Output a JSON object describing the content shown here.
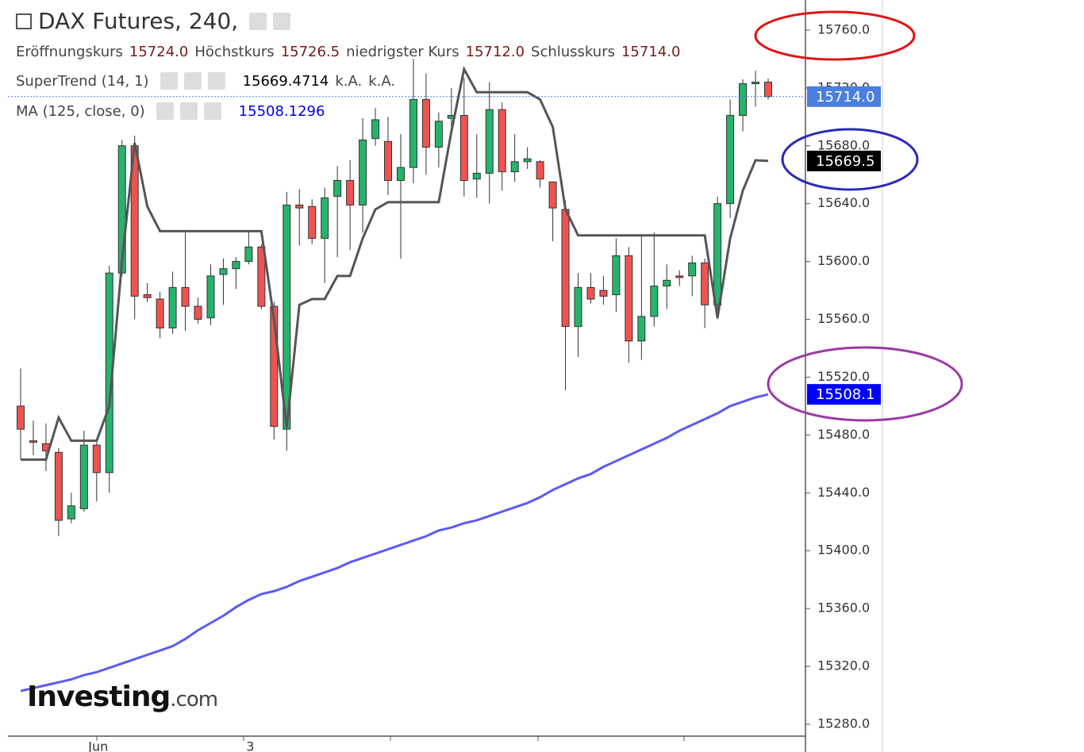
{
  "header": {
    "title": "DAX Futures, 240,",
    "ohlc": [
      {
        "label": "Eröffnungskurs",
        "value": "15724.0"
      },
      {
        "label": "Höchstkurs",
        "value": "15726.5"
      },
      {
        "label": "niedrigster Kurs",
        "value": "15712.0"
      },
      {
        "label": "Schlusskurs",
        "value": "15714.0"
      }
    ],
    "indicators": [
      {
        "name": "SuperTrend (14, 1)",
        "values": [
          "15669.4714",
          "k.A.",
          "k.A."
        ]
      },
      {
        "name": "MA (125, close, 0)",
        "values": [
          "15508.1296"
        ]
      }
    ]
  },
  "watermark": {
    "brand": "Investing",
    "suffix": ".com"
  },
  "chart_data": {
    "type": "candlestick",
    "categories": [
      null,
      null,
      null,
      null,
      null,
      null,
      "Jun",
      null,
      null,
      null,
      null,
      null,
      null,
      null,
      null,
      null,
      null,
      null,
      "3",
      null,
      null,
      null,
      null,
      null,
      null,
      null,
      null,
      null,
      null,
      null,
      null,
      null,
      null,
      null,
      null,
      null,
      null,
      null,
      null,
      null,
      null,
      null,
      null,
      null,
      null,
      null,
      null,
      null,
      null,
      null,
      null,
      null,
      null,
      null,
      null,
      null,
      null,
      null,
      null,
      null
    ],
    "open": [
      15500,
      15476,
      15474,
      15468,
      15422,
      15429,
      15473,
      15454,
      15592,
      15680,
      15577,
      15574,
      15554,
      15582,
      15569,
      15561,
      15591,
      15595,
      15600,
      15610,
      15569,
      15484,
      15639,
      15638,
      15616,
      15645,
      15656,
      15639,
      15685,
      15683,
      15656,
      15665,
      15712,
      15679,
      15699,
      15701,
      15657,
      15661,
      15705,
      15662,
      15669,
      15669,
      15655,
      15636,
      15555,
      15582,
      15580,
      15577,
      15604,
      15545,
      15562,
      15583,
      15590,
      15590,
      15599,
      15570,
      15640,
      15701,
      15723,
      15724
    ],
    "high": [
      15526,
      15490,
      15488,
      15471,
      15440,
      15483,
      15475,
      15597,
      15684,
      15687,
      15585,
      15579,
      15593,
      15620,
      15575,
      15598,
      15602,
      15603,
      15621,
      15612,
      15572,
      15648,
      15650,
      15643,
      15651,
      15666,
      15670,
      15699,
      15706,
      15700,
      15688,
      15740,
      15730,
      15703,
      15720,
      15727,
      15688,
      15724,
      15710,
      15688,
      15679,
      15670,
      15655,
      15642,
      15592,
      15592,
      15590,
      15616,
      15610,
      15618,
      15620,
      15598,
      15594,
      15604,
      15602,
      15645,
      15712,
      15726,
      15732,
      15726.5
    ],
    "low": [
      15463,
      15466,
      15455,
      15410,
      15419,
      15427,
      15434,
      15440,
      15590,
      15560,
      15572,
      15547,
      15550,
      15552,
      15557,
      15556,
      15570,
      15581,
      15598,
      15567,
      15477,
      15469,
      15611,
      15612,
      15585,
      15603,
      15608,
      15620,
      15680,
      15646,
      15602,
      15654,
      15660,
      15665,
      15690,
      15645,
      15644,
      15640,
      15649,
      15655,
      15664,
      15651,
      15614,
      15511,
      15534,
      15571,
      15570,
      15565,
      15530,
      15532,
      15555,
      15567,
      15583,
      15576,
      15554,
      15560,
      15630,
      15690,
      15707,
      15712
    ],
    "close": [
      15484,
      15475,
      15469,
      15421,
      15431,
      15473,
      15454,
      15592,
      15680,
      15576,
      15575,
      15554,
      15582,
      15569,
      15560,
      15590,
      15595,
      15600,
      15610,
      15569,
      15486,
      15639,
      15637,
      15616,
      15644,
      15656,
      15639,
      15684,
      15698,
      15656,
      15665,
      15712,
      15679,
      15697,
      15701,
      15656,
      15661,
      15705,
      15662,
      15669,
      15671,
      15657,
      15637,
      15555,
      15582,
      15574,
      15576,
      15604,
      15545,
      15562,
      15583,
      15587,
      15589,
      15599,
      15570,
      15640,
      15701,
      15723,
      15724,
      15714
    ],
    "up_color": "#26b36c",
    "down_color": "#ef5350",
    "series": [
      {
        "name": "SuperTrend",
        "color": "#555555",
        "values": [
          15463,
          15463,
          15463,
          15492,
          15476,
          15476,
          15476,
          15500,
          15600,
          15682,
          15638,
          15621,
          15621,
          15621,
          15621,
          15621,
          15621,
          15621,
          15621,
          15621,
          15560,
          15485,
          15570,
          15574,
          15574,
          15590,
          15590,
          15616,
          15636,
          15641,
          15641,
          15641,
          15641,
          15641,
          15690,
          15733,
          15717,
          15717,
          15717,
          15717,
          15717,
          15712,
          15693,
          15636,
          15618,
          15618,
          15618,
          15618,
          15618,
          15618,
          15618,
          15618,
          15618,
          15618,
          15618,
          15561,
          15616,
          15649,
          15670,
          15669.5
        ]
      },
      {
        "name": "MA",
        "color": "#5b5bf5",
        "values": [
          15303,
          15305,
          15307,
          15309,
          15311,
          15314,
          15316,
          15319,
          15322,
          15325,
          15328,
          15331,
          15334,
          15339,
          15345,
          15350,
          15355,
          15361,
          15366,
          15370,
          15372,
          15375,
          15379,
          15382,
          15385,
          15388,
          15392,
          15395,
          15398,
          15401,
          15404,
          15407,
          15410,
          15414,
          15416,
          15419,
          15421,
          15424,
          15427,
          15430,
          15433,
          15437,
          15442,
          15446,
          15450,
          15453,
          15458,
          15462,
          15466,
          15470,
          15474,
          15478,
          15483,
          15487,
          15491,
          15495,
          15500,
          15503,
          15506,
          15508.1
        ]
      }
    ],
    "price_markers": [
      {
        "value": 15714,
        "label": "15714.0",
        "color": "#4a7ee0"
      },
      {
        "value": 15669.5,
        "label": "15669.5",
        "color": "#000000"
      },
      {
        "value": 15508.1,
        "label": "15508.1",
        "color": "#0000ff"
      }
    ],
    "ylim": [
      15260.8,
      15780.8
    ],
    "yticks": [
      {
        "value": 15280,
        "label": "15280.0"
      },
      {
        "value": 15320,
        "label": "15320.0"
      },
      {
        "value": 15360,
        "label": "15360.0"
      },
      {
        "value": 15400,
        "label": "15400.0"
      },
      {
        "value": 15440,
        "label": "15440.0"
      },
      {
        "value": 15480,
        "label": "15480.0"
      },
      {
        "value": 15520,
        "label": "15520.0"
      },
      {
        "value": 15560,
        "label": "15560.0"
      },
      {
        "value": 15600,
        "label": "15600.0"
      },
      {
        "value": 15640,
        "label": "15640.0"
      },
      {
        "value": 15680,
        "label": "15680.0"
      },
      {
        "value": 15720,
        "label": "15720.0"
      },
      {
        "value": 15760,
        "label": "15760.0"
      }
    ]
  }
}
